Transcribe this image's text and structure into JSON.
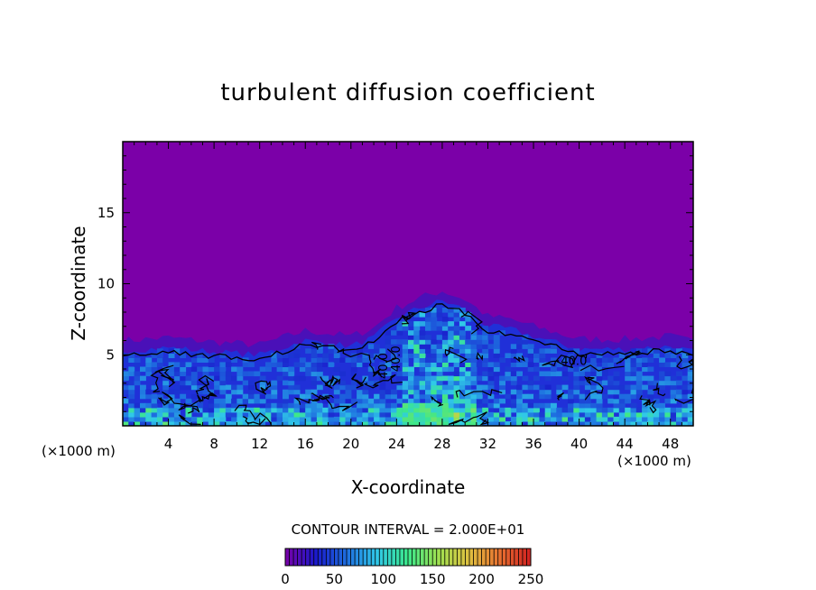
{
  "chart_data": {
    "type": "heatmap",
    "title": "turbulent diffusion coefficient",
    "xlabel": "X-coordinate",
    "ylabel": "Z-coordinate",
    "x_unit": "(×1000 m)",
    "x_unit_right": "(×1000 m)",
    "xlim": [
      0,
      50
    ],
    "ylim": [
      0,
      20
    ],
    "x_ticks": [
      4,
      8,
      12,
      16,
      20,
      24,
      28,
      32,
      36,
      40,
      44,
      48
    ],
    "y_ticks": [
      5,
      10,
      15
    ],
    "contour_interval_text": "CONTOUR INTERVAL = 2.000E+01",
    "contour_labels": [
      "40.0",
      "40.0",
      "40.0"
    ],
    "colorbar": {
      "min": 0,
      "max": 250,
      "ticks": [
        0,
        50,
        100,
        150,
        200,
        250
      ],
      "colors": [
        "#7a00a8",
        "#1a1acc",
        "#1e6ee0",
        "#30c8e8",
        "#3ce88a",
        "#a0e050",
        "#e0c040",
        "#e87030",
        "#d02020"
      ]
    },
    "background_color": "#7b00a8",
    "turbulent_top_profile": [
      {
        "x": 0,
        "z": 5.3
      },
      {
        "x": 4,
        "z": 5.5
      },
      {
        "x": 8,
        "z": 5.2
      },
      {
        "x": 12,
        "z": 5.0
      },
      {
        "x": 16,
        "z": 6.0
      },
      {
        "x": 20,
        "z": 5.6
      },
      {
        "x": 22,
        "z": 6.2
      },
      {
        "x": 24,
        "z": 7.6
      },
      {
        "x": 26,
        "z": 8.3
      },
      {
        "x": 28,
        "z": 8.8
      },
      {
        "x": 30,
        "z": 8.2
      },
      {
        "x": 32,
        "z": 7.0
      },
      {
        "x": 34,
        "z": 6.8
      },
      {
        "x": 36,
        "z": 6.3
      },
      {
        "x": 40,
        "z": 5.4
      },
      {
        "x": 44,
        "z": 5.4
      },
      {
        "x": 48,
        "z": 5.6
      },
      {
        "x": 50,
        "z": 5.2
      }
    ]
  }
}
